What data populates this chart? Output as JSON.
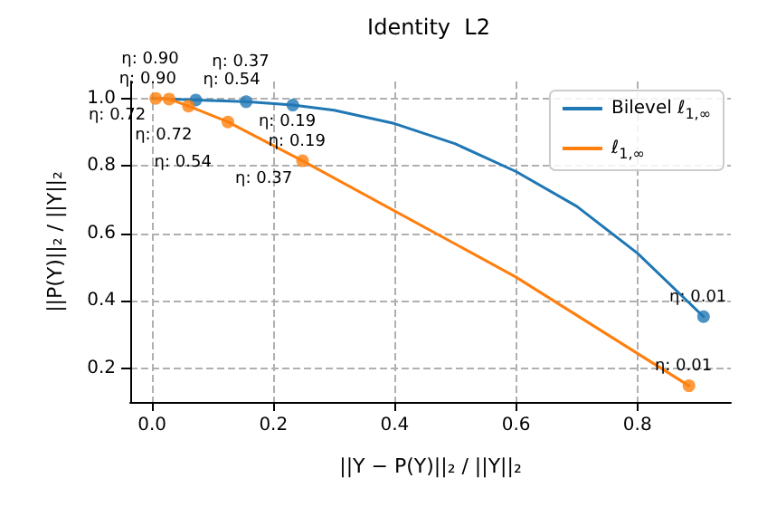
{
  "chart_data": {
    "type": "line",
    "title": "Identity  L2",
    "xlabel": "||Y − P(Y)||₂ / ||Y||₂",
    "ylabel": "||P(Y)||₂ / ||Y||₂",
    "xlim": [
      -0.036,
      0.954
    ],
    "ylim": [
      0.1,
      1.05
    ],
    "xticks": [
      {
        "value": 0,
        "label": "0.0"
      },
      0.2,
      0.4,
      0.6,
      0.8
    ],
    "yticks": [
      0.2,
      0.4,
      0.6,
      0.8,
      {
        "value": 1,
        "label": "1.0"
      }
    ],
    "grid": true,
    "legend": "top right",
    "line_style": "solid",
    "series": [
      {
        "name": "Bilevel ℓ$_{1,∞}$",
        "marker": "none",
        "color": "#1f77b4",
        "x": [
          0,
          0.02,
          0.072,
          0.155,
          0.232,
          0.3,
          0.4,
          0.5,
          0.6,
          0.7,
          0.8,
          0.909
        ],
        "values": [
          1.0,
          0.999,
          0.995,
          0.99,
          0.98,
          0.965,
          0.925,
          0.865,
          0.783,
          0.68,
          0.541,
          0.353
        ]
      },
      {
        "name": "ℓ$_{1,∞}$",
        "marker": "none",
        "color": "#ff7f0e",
        "x": [
          0.006,
          0.028,
          0.06,
          0.125,
          0.248,
          0.6,
          0.885
        ],
        "values": [
          1.0,
          0.998,
          0.977,
          0.93,
          0.815,
          0.47,
          0.148
        ]
      },
      {
        "type": "scatter",
        "marker": "circle",
        "color": "#1f77b4",
        "x": [
          0.072,
          0.155,
          0.232,
          0.909
        ],
        "values": [
          0.995,
          0.99,
          0.98,
          0.353
        ]
      },
      {
        "type": "scatter",
        "marker": "circle",
        "color": "#ff7f0e",
        "x": [
          0.006,
          0.028,
          0.06,
          0.125,
          0.248,
          0.885
        ],
        "values": [
          1.0,
          0.998,
          0.977,
          0.93,
          0.815,
          0.148
        ]
      }
    ],
    "annotations": [
      {
        "text": "η: 0.90",
        "x": 0.002,
        "y": 1.0
      },
      {
        "text": "η: 0.72",
        "x": 0.02,
        "y": 0.999
      },
      {
        "text": "η: 0.54",
        "x": 0.072,
        "y": 0.995
      },
      {
        "text": "η: 0.37",
        "x": 0.155,
        "y": 0.99
      },
      {
        "text": "η: 0.19",
        "x": 0.232,
        "y": 0.98
      },
      {
        "text": "η: 0.01",
        "x": 0.909,
        "y": 0.353
      },
      {
        "text": "η: 0.90",
        "x": 0.006,
        "y": 1.0
      },
      {
        "text": "η: 0.72",
        "x": 0.028,
        "y": 0.998
      },
      {
        "text": "η: 0.54",
        "x": 0.06,
        "y": 0.977
      },
      {
        "text": "η: 0.37",
        "x": 0.125,
        "y": 0.93
      },
      {
        "text": "η: 0.19",
        "x": 0.248,
        "y": 0.815
      },
      {
        "text": "η: 0.01",
        "x": 0.885,
        "y": 0.148
      }
    ]
  }
}
